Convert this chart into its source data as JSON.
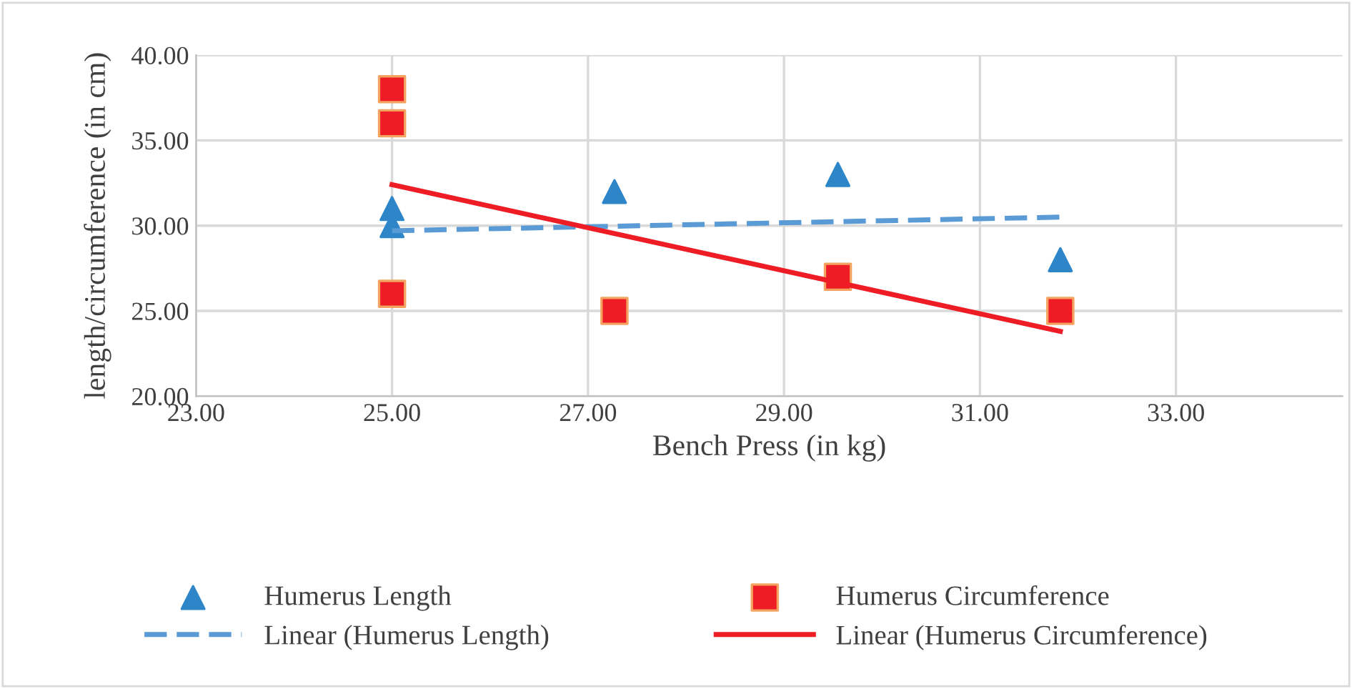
{
  "chart_data": {
    "type": "scatter",
    "xlabel": "Bench Press (in kg)",
    "ylabel": "length/circumference (in cm)",
    "xlim": [
      23,
      34.7
    ],
    "ylim": [
      20,
      40
    ],
    "xticks": [
      {
        "value": 23,
        "label": "23.00"
      },
      {
        "value": 25,
        "label": "25.00"
      },
      {
        "value": 27,
        "label": "27.00"
      },
      {
        "value": 29,
        "label": "29.00"
      },
      {
        "value": 31,
        "label": "31.00"
      },
      {
        "value": 33,
        "label": "33.00"
      }
    ],
    "yticks": [
      {
        "value": 20,
        "label": "20.00"
      },
      {
        "value": 25,
        "label": "25.00"
      },
      {
        "value": 30,
        "label": "30.00"
      },
      {
        "value": 35,
        "label": "35.00"
      },
      {
        "value": 40,
        "label": "40.00"
      }
    ],
    "grid": true,
    "legend": "bottom",
    "series": [
      {
        "name": "Humerus Length",
        "marker": "triangle",
        "color": "#2e86c8",
        "x": [
          25,
          25,
          27.27,
          29.55,
          31.82
        ],
        "values": [
          31,
          30,
          32,
          33,
          28
        ]
      },
      {
        "name": "Humerus Circumference",
        "marker": "square",
        "color": "#ee1c24",
        "x": [
          25,
          25,
          25,
          27.27,
          29.55,
          31.82
        ],
        "values": [
          38,
          36,
          26,
          25,
          27,
          25
        ]
      },
      {
        "name": "Linear (Humerus Length)",
        "type": "line",
        "line_style": "dashed",
        "color": "#5b9bd5",
        "x": [
          25,
          31.82
        ],
        "values": [
          29.7,
          30.5
        ]
      },
      {
        "name": "Linear (Humerus Circumference)",
        "type": "line",
        "line_style": "solid",
        "color": "#ee1c24",
        "x": [
          25,
          31.82
        ],
        "values": [
          32.4,
          23.8
        ]
      }
    ]
  }
}
